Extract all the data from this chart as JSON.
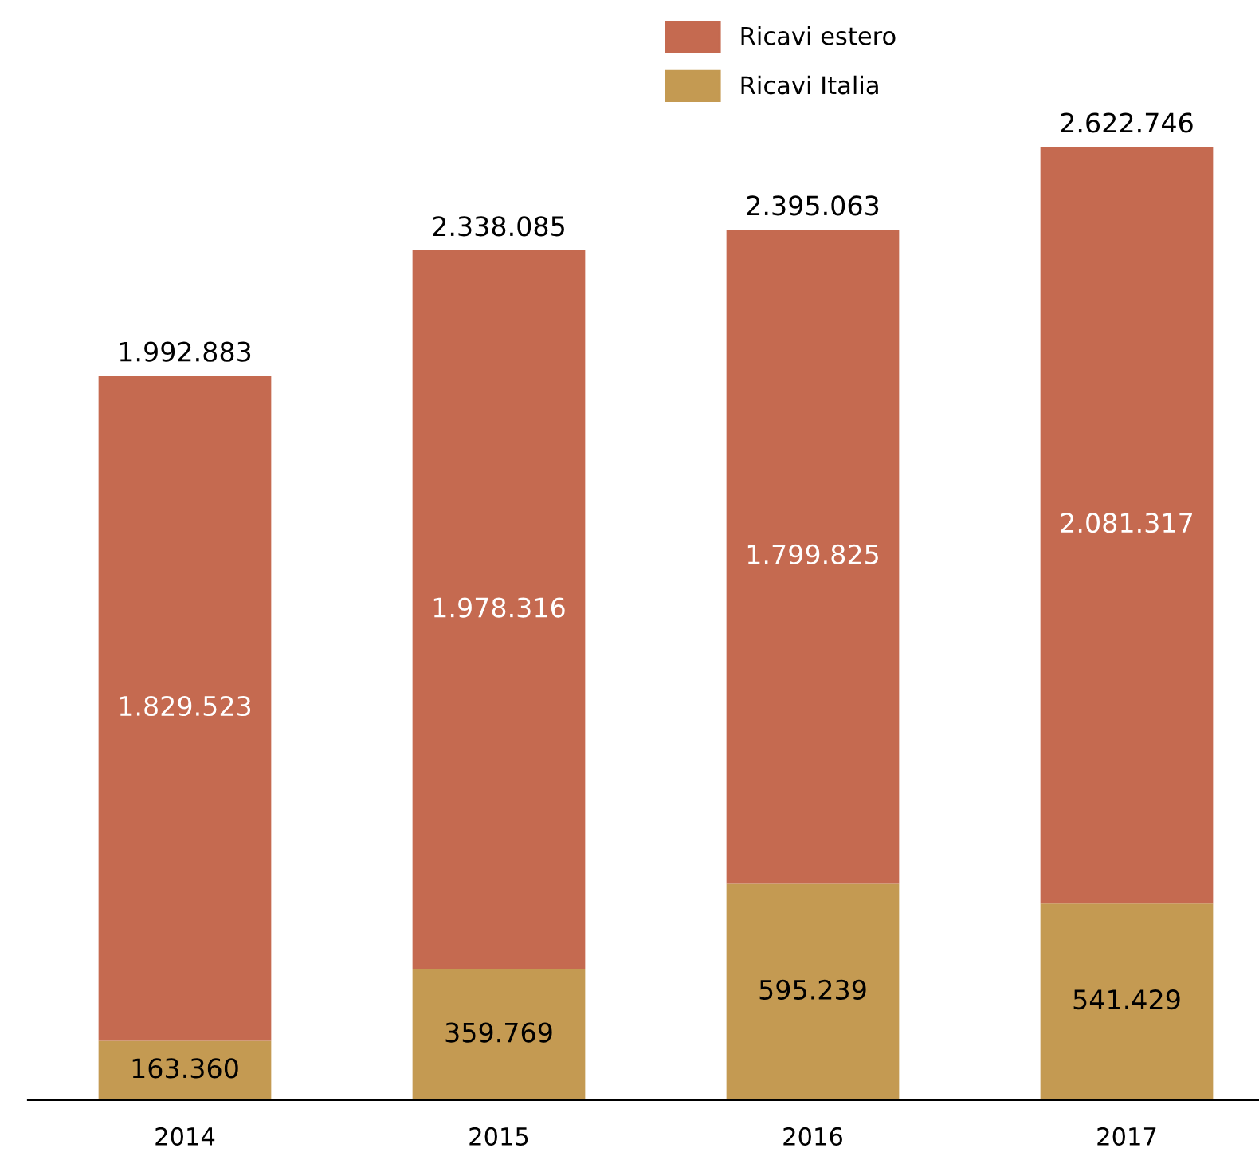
{
  "chart_data": {
    "type": "bar",
    "stacked": true,
    "categories": [
      "2014",
      "2015",
      "2016",
      "2017"
    ],
    "series": [
      {
        "name": "Ricavi Italia",
        "color": "#c49a52",
        "values": [
          163360,
          359769,
          595239,
          541429
        ],
        "value_labels": [
          "163.360",
          "359.769",
          "595.239",
          "541.429"
        ]
      },
      {
        "name": "Ricavi estero",
        "color": "#c56a50",
        "values": [
          1829523,
          1978316,
          1799825,
          2081317
        ],
        "value_labels": [
          "1.829.523",
          "1.978.316",
          "1.799.825",
          "2.081.317"
        ]
      }
    ],
    "totals": [
      "1.992.883",
      "2.338.085",
      "2.395.063",
      "2.622.746"
    ],
    "legend": "top",
    "grid": false
  }
}
